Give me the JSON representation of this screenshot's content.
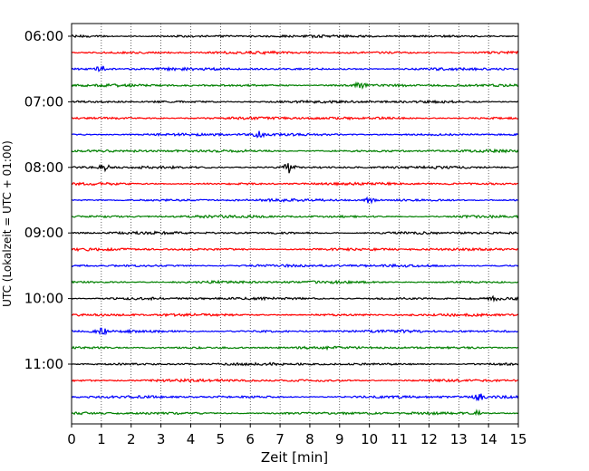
{
  "chart_data": {
    "type": "line",
    "subtype": "helicorder",
    "xlabel": "Zeit  [min]",
    "ylabel": "UTC (Lokalzeit = UTC + 01:00)",
    "xlim": [
      0,
      15
    ],
    "x_ticks": [
      0,
      1,
      2,
      3,
      4,
      5,
      6,
      7,
      8,
      9,
      10,
      11,
      12,
      13,
      14,
      15
    ],
    "x_tick_labels": [
      "0",
      "1",
      "2",
      "3",
      "4",
      "5",
      "6",
      "7",
      "8",
      "9",
      "10",
      "11",
      "12",
      "13",
      "14",
      "15"
    ],
    "y_tick_labels": [
      {
        "label": "06:00",
        "trace_index": 0
      },
      {
        "label": "07:00",
        "trace_index": 4
      },
      {
        "label": "08:00",
        "trace_index": 8
      },
      {
        "label": "09:00",
        "trace_index": 12
      },
      {
        "label": "10:00",
        "trace_index": 16
      },
      {
        "label": "11:00",
        "trace_index": 20
      }
    ],
    "trace_interval_minutes": 15,
    "trace_count": 24,
    "trace_colors": [
      "#000000",
      "#ff0000",
      "#0000ff",
      "#008000"
    ],
    "grid": "vertical dotted at each minute",
    "legend": "none",
    "events": [
      {
        "trace_index": 8,
        "minute": 7.3,
        "amplitude": "large"
      },
      {
        "trace_index": 8,
        "minute": 1.1,
        "amplitude": "medium"
      },
      {
        "trace_index": 3,
        "minute": 9.7,
        "amplitude": "medium"
      },
      {
        "trace_index": 2,
        "minute": 1.0,
        "amplitude": "medium"
      },
      {
        "trace_index": 6,
        "minute": 6.3,
        "amplitude": "medium"
      },
      {
        "trace_index": 10,
        "minute": 10.0,
        "amplitude": "medium"
      },
      {
        "trace_index": 18,
        "minute": 1.0,
        "amplitude": "medium"
      },
      {
        "trace_index": 22,
        "minute": 13.7,
        "amplitude": "medium"
      },
      {
        "trace_index": 23,
        "minute": 13.6,
        "amplitude": "medium"
      },
      {
        "trace_index": 16,
        "minute": 14.2,
        "amplitude": "medium"
      }
    ]
  }
}
